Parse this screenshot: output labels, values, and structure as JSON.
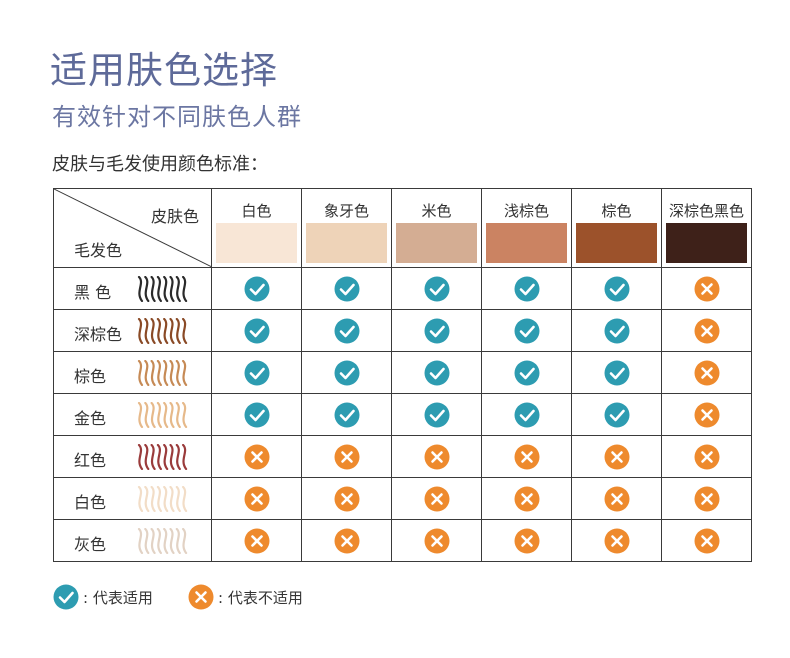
{
  "title": "适用肤色选择",
  "subtitle": "有效针对不同肤色人群",
  "intro": "皮肤与毛发使用颜色标准：",
  "corner": {
    "skin_label": "皮肤色",
    "hair_label": "毛发色"
  },
  "skin_tones": [
    {
      "label": "白色",
      "color": "#f8e6d6"
    },
    {
      "label": "象牙色",
      "color": "#eed3b8"
    },
    {
      "label": "米色",
      "color": "#d4ad93"
    },
    {
      "label": "浅棕色",
      "color": "#cb8362"
    },
    {
      "label": "棕色",
      "color": "#9c522b"
    },
    {
      "label": "深棕色黑色",
      "color": "#3e2119"
    }
  ],
  "hair_colors": [
    {
      "label": "黑 色",
      "color": "#2a2a2a",
      "suitable": [
        true,
        true,
        true,
        true,
        true,
        false
      ]
    },
    {
      "label": "深棕色",
      "color": "#8a4a26",
      "suitable": [
        true,
        true,
        true,
        true,
        true,
        false
      ]
    },
    {
      "label": "棕色",
      "color": "#c68a55",
      "suitable": [
        true,
        true,
        true,
        true,
        true,
        false
      ]
    },
    {
      "label": "金色",
      "color": "#e6b98a",
      "suitable": [
        true,
        true,
        true,
        true,
        true,
        false
      ]
    },
    {
      "label": "红色",
      "color": "#9a3b3b",
      "suitable": [
        false,
        false,
        false,
        false,
        false,
        false
      ]
    },
    {
      "label": "白色",
      "color": "#f2ddc7",
      "suitable": [
        false,
        false,
        false,
        false,
        false,
        false
      ]
    },
    {
      "label": "灰色",
      "color": "#e2d2c4",
      "suitable": [
        false,
        false,
        false,
        false,
        false,
        false
      ]
    }
  ],
  "legend": {
    "suitable_label": ": 代表适用",
    "unsuitable_label": ": 代表不适用"
  },
  "colors": {
    "check": "#2d9cb1",
    "cross": "#ee8a2d",
    "title": "#5e6a99",
    "subtitle": "#6b76a2"
  }
}
